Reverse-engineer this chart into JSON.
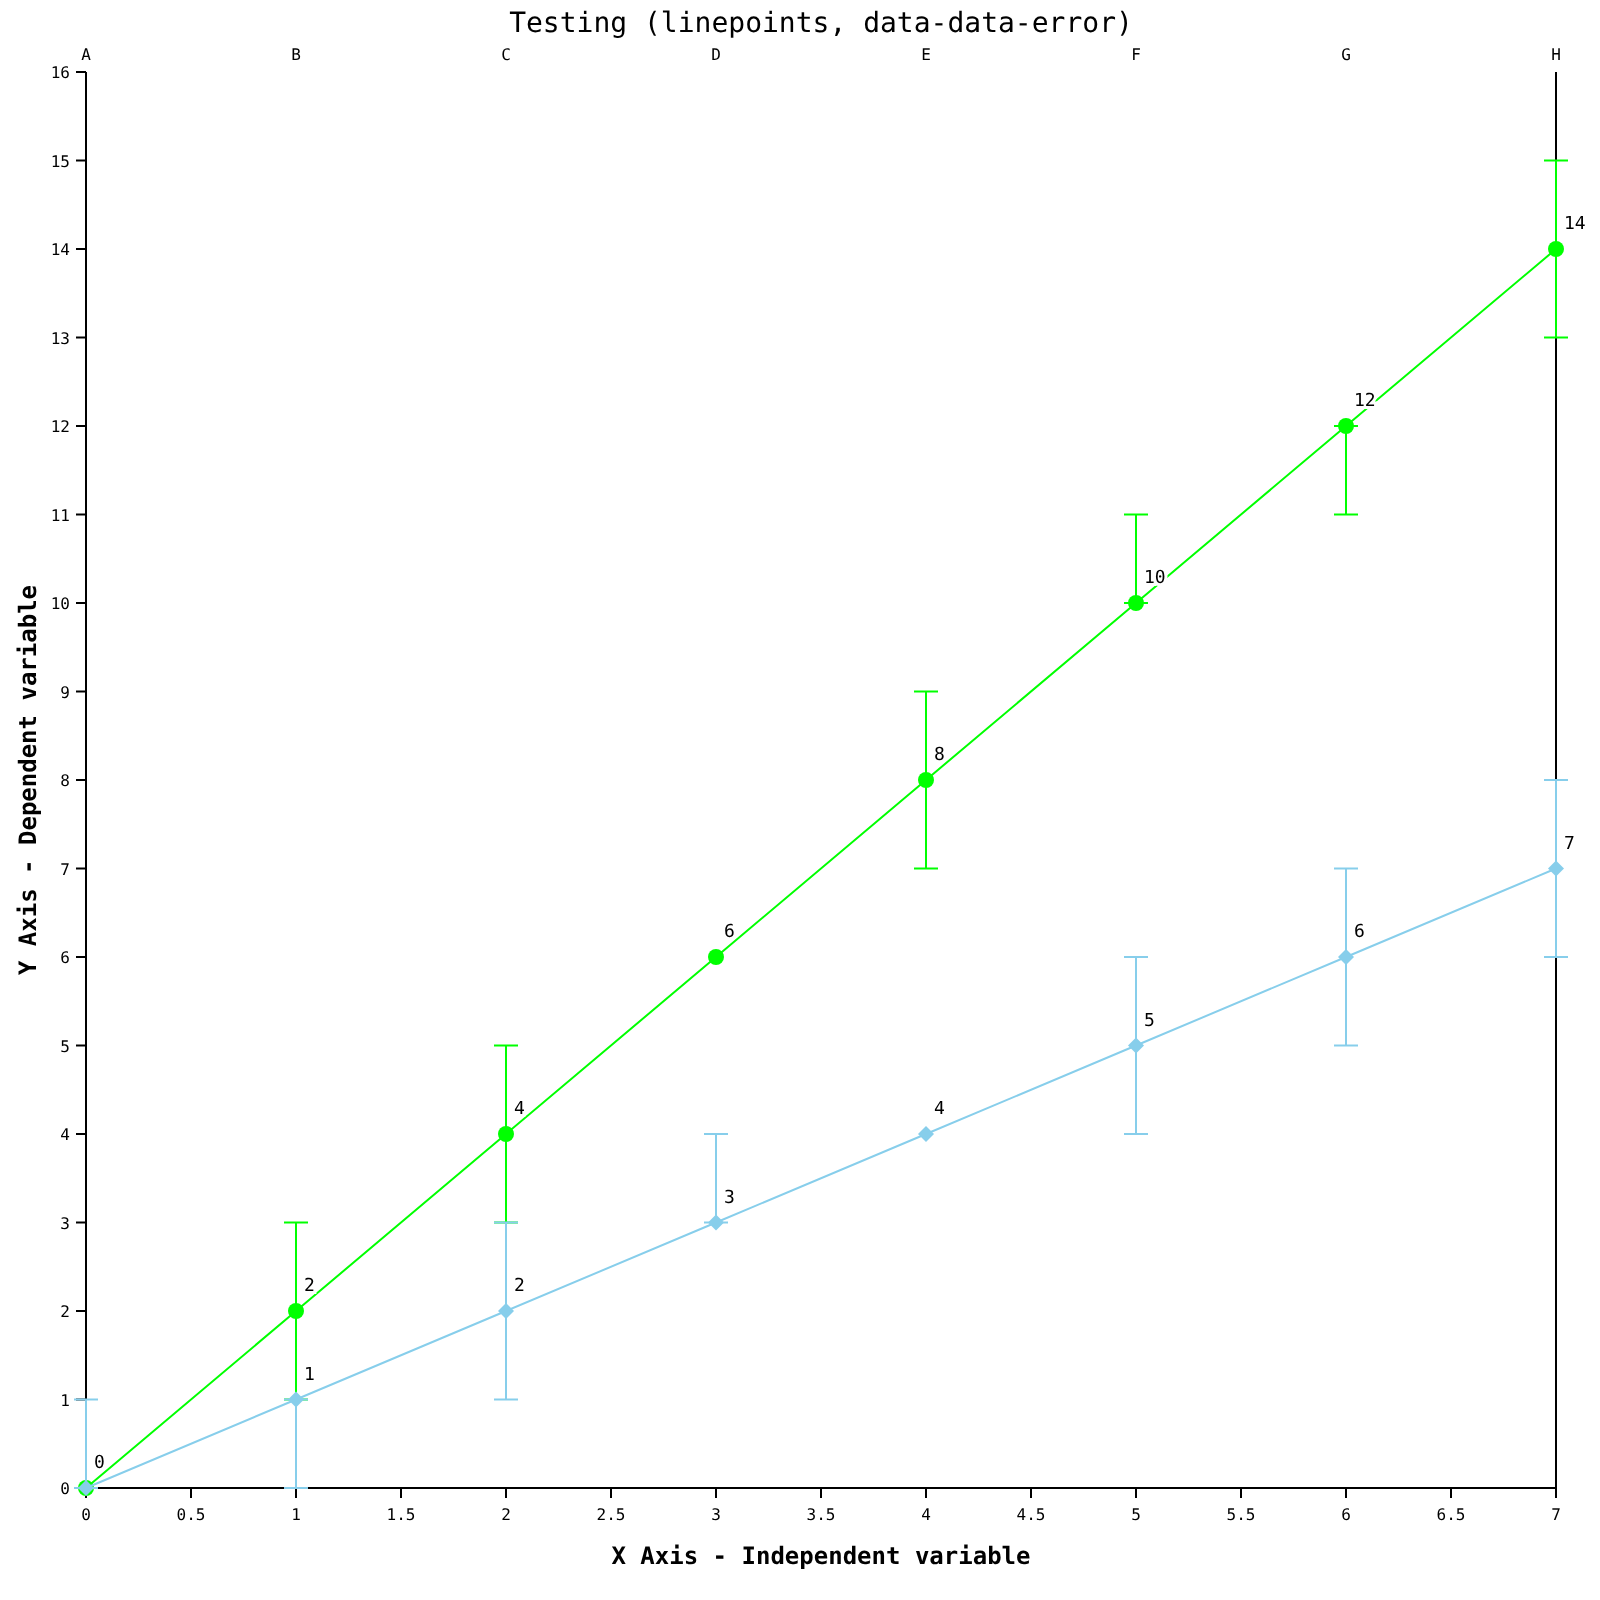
{
  "chart_data": {
    "type": "line",
    "title": "Testing (linepoints, data-data-error)",
    "xlabel": "X Axis - Independent variable",
    "ylabel": "Y Axis - Dependent variable",
    "x": [
      0,
      1,
      2,
      3,
      4,
      5,
      6,
      7
    ],
    "series": [
      {
        "color": "#00ff00",
        "marker": "circle",
        "values": [
          0,
          2,
          4,
          6,
          8,
          10,
          12,
          14
        ],
        "errors": [
          null,
          1,
          1,
          null,
          1,
          [
            10,
            11
          ],
          [
            11,
            12
          ],
          1
        ],
        "value_labels": [
          "0",
          "2",
          "4",
          "6",
          "8",
          "10",
          "12",
          "14"
        ]
      },
      {
        "color": "#87ceeb",
        "marker": "diamond",
        "values": [
          0,
          1,
          2,
          3,
          4,
          5,
          6,
          7
        ],
        "errors": [
          [
            0,
            1
          ],
          [
            0,
            1
          ],
          1,
          [
            3,
            4
          ],
          null,
          1,
          1,
          1
        ],
        "value_labels": [
          null,
          "1",
          "2",
          "3",
          "4",
          "5",
          "6",
          "7"
        ]
      }
    ],
    "xlim": [
      0,
      7
    ],
    "xticks": [
      0,
      0.5,
      1,
      1.5,
      2,
      2.5,
      3,
      3.5,
      4,
      4.5,
      5,
      5.5,
      6,
      6.5,
      7
    ],
    "annotations": [
      "A",
      "B",
      "C",
      "D",
      "E",
      "F",
      "G",
      "H"
    ],
    "ylim": [
      0,
      16
    ],
    "yticks": [
      0,
      1,
      2,
      3,
      4,
      5,
      6,
      7,
      8,
      9,
      10,
      11,
      12,
      13,
      14,
      15,
      16
    ],
    "grid": false,
    "line_style": "solid"
  }
}
